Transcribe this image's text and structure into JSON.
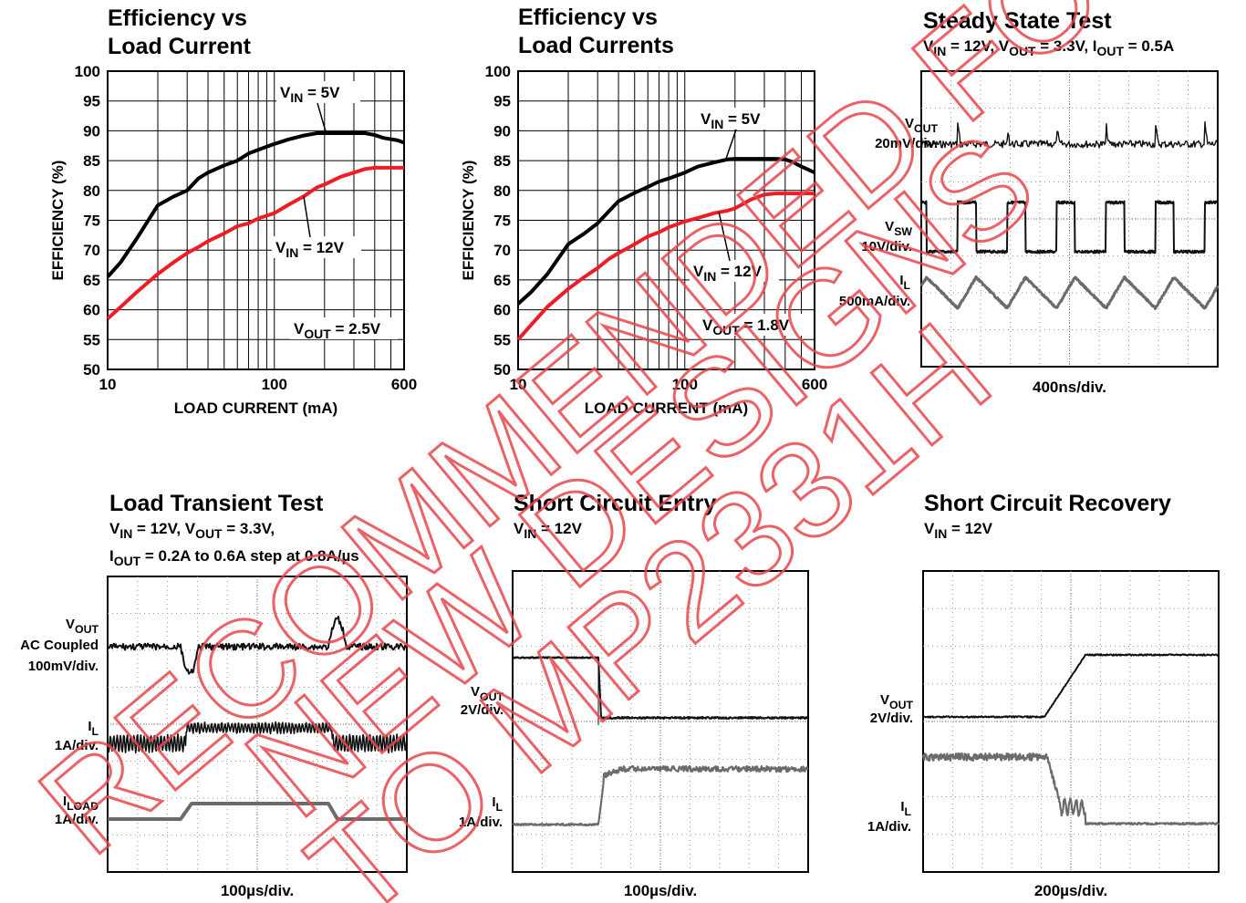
{
  "colors": {
    "vin5v": "#000000",
    "vin12v": "#ee1c25",
    "trace": "#111111",
    "trace_gray": "#6b6b6b",
    "watermark": "#e8474b"
  },
  "watermark": {
    "lines": [
      "RECOMMENDED FOR",
      "NEW DESIGNS",
      "TO MP2331H"
    ]
  },
  "chart_data": [
    {
      "type": "line",
      "title": [
        "Efficiency vs",
        "Load Current"
      ],
      "xlabel": "LOAD CURRENT (mA)",
      "ylabel": "EFFICIENCY (%)",
      "xscale": "log",
      "xlim": [
        10,
        600
      ],
      "ylim": [
        50,
        100
      ],
      "xticks": [
        10,
        100,
        600
      ],
      "yticks": [
        50,
        55,
        60,
        65,
        70,
        75,
        80,
        85,
        90,
        95,
        100
      ],
      "grid": true,
      "series": [
        {
          "name": "VIN = 5V",
          "color": "#000000",
          "x": [
            10,
            12,
            15,
            20,
            25,
            30,
            35,
            40,
            50,
            60,
            70,
            80,
            100,
            120,
            150,
            180,
            200,
            250,
            300,
            350,
            400,
            450,
            500,
            550,
            600
          ],
          "y": [
            65.5,
            68,
            72,
            77.5,
            79,
            80,
            82,
            83,
            84.2,
            85,
            86.2,
            86.8,
            87.8,
            88.5,
            89.2,
            89.6,
            89.6,
            89.6,
            89.6,
            89.6,
            89.3,
            88.8,
            88.6,
            88.4,
            88
          ]
        },
        {
          "name": "VIN = 12V",
          "color": "#ee1c25",
          "x": [
            10,
            12,
            15,
            20,
            25,
            30,
            35,
            40,
            50,
            60,
            70,
            80,
            100,
            120,
            150,
            180,
            200,
            250,
            300,
            350,
            400,
            450,
            500,
            550,
            600
          ],
          "y": [
            58.5,
            60.5,
            63,
            66,
            68,
            69.5,
            70.5,
            71.5,
            72.8,
            74,
            74.5,
            75.3,
            76.2,
            77.5,
            79,
            80.5,
            81,
            82.3,
            83,
            83.6,
            83.8,
            83.8,
            83.8,
            83.8,
            83.8
          ]
        }
      ],
      "annotations": [
        "VOUT = 2.5V"
      ]
    },
    {
      "type": "line",
      "title": [
        "Efficiency vs",
        "Load Currents"
      ],
      "xlabel": "LOAD CURRENT (mA)",
      "ylabel": "EFFICIENCY (%)",
      "xscale": "log",
      "xlim": [
        10,
        600
      ],
      "ylim": [
        50,
        100
      ],
      "xticks": [
        10,
        100,
        600
      ],
      "yticks": [
        50,
        55,
        60,
        65,
        70,
        75,
        80,
        85,
        90,
        95,
        100
      ],
      "grid": true,
      "series": [
        {
          "name": "VIN = 5V",
          "color": "#000000",
          "x": [
            10,
            12,
            15,
            20,
            25,
            30,
            35,
            40,
            50,
            60,
            70,
            80,
            100,
            120,
            150,
            180,
            200,
            250,
            300,
            350,
            400,
            450,
            500,
            550,
            600
          ],
          "y": [
            61,
            63,
            66,
            71,
            72.8,
            74.5,
            76.5,
            78.2,
            79.6,
            80.6,
            81.5,
            82,
            83,
            84,
            84.7,
            85.2,
            85.3,
            85.3,
            85.3,
            85.3,
            85.2,
            84.7,
            84,
            83.5,
            83
          ]
        },
        {
          "name": "VIN = 12V",
          "color": "#ee1c25",
          "x": [
            10,
            12,
            15,
            20,
            25,
            30,
            35,
            40,
            50,
            60,
            70,
            80,
            100,
            120,
            150,
            180,
            200,
            250,
            300,
            350,
            400,
            450,
            500,
            550,
            600
          ],
          "y": [
            55,
            57.5,
            60.5,
            63.5,
            65.5,
            67,
            68.5,
            69.5,
            71,
            72.3,
            73,
            73.8,
            74.8,
            75.4,
            76.2,
            76.6,
            77,
            78.5,
            79.3,
            79.5,
            79.5,
            79.5,
            79.5,
            79.5,
            79.5
          ]
        }
      ],
      "annotations": [
        "VOUT = 1.8V"
      ]
    },
    {
      "type": "oscilloscope",
      "title": "Steady State Test",
      "conditions": [
        "VIN = 12V, VOUT = 3.3V, IOUT = 0.5A"
      ],
      "timebase": "400ns/div.",
      "channels": [
        {
          "label": "VOUT",
          "scale": "20mV/div.",
          "waveform": "dc with switching noise"
        },
        {
          "label": "VSW",
          "scale": "10V/div.",
          "waveform": "square",
          "cycles": 6
        },
        {
          "label": "IL",
          "scale": "500mA/div.",
          "waveform": "triangle",
          "cycles": 6
        }
      ]
    },
    {
      "type": "oscilloscope",
      "title": "Load Transient Test",
      "conditions": [
        "VIN = 12V, VOUT = 3.3V,",
        "IOUT = 0.2A to 0.6A step at 0.8A/µs"
      ],
      "timebase": "100µs/div.",
      "channels": [
        {
          "label": "VOUT",
          "scale": "AC Coupled 100mV/div.",
          "waveform": "dc with undershoot and overshoot at load steps"
        },
        {
          "label": "IL",
          "scale": "1A/div.",
          "waveform": "ripple, stepped up during high load"
        },
        {
          "label": "ILOAD",
          "scale": "1A/div.",
          "waveform": "step 0.2A to 0.6A and back"
        }
      ]
    },
    {
      "type": "oscilloscope",
      "title": "Short Circuit Entry",
      "conditions": [
        "VIN = 12V"
      ],
      "timebase": "100µs/div.",
      "channels": [
        {
          "label": "VOUT",
          "scale": "2V/div.",
          "waveform": "drops to near zero"
        },
        {
          "label": "IL",
          "scale": "1A/div.",
          "waveform": "steps up to short-circuit level"
        }
      ]
    },
    {
      "type": "oscilloscope",
      "title": "Short Circuit Recovery",
      "conditions": [
        "VIN = 12V"
      ],
      "timebase": "200µs/div.",
      "channels": [
        {
          "label": "VOUT",
          "scale": "2V/div.",
          "waveform": "ramps up to regulation"
        },
        {
          "label": "IL",
          "scale": "1A/div.",
          "waveform": "drops from short-circuit level to load level"
        }
      ]
    }
  ]
}
